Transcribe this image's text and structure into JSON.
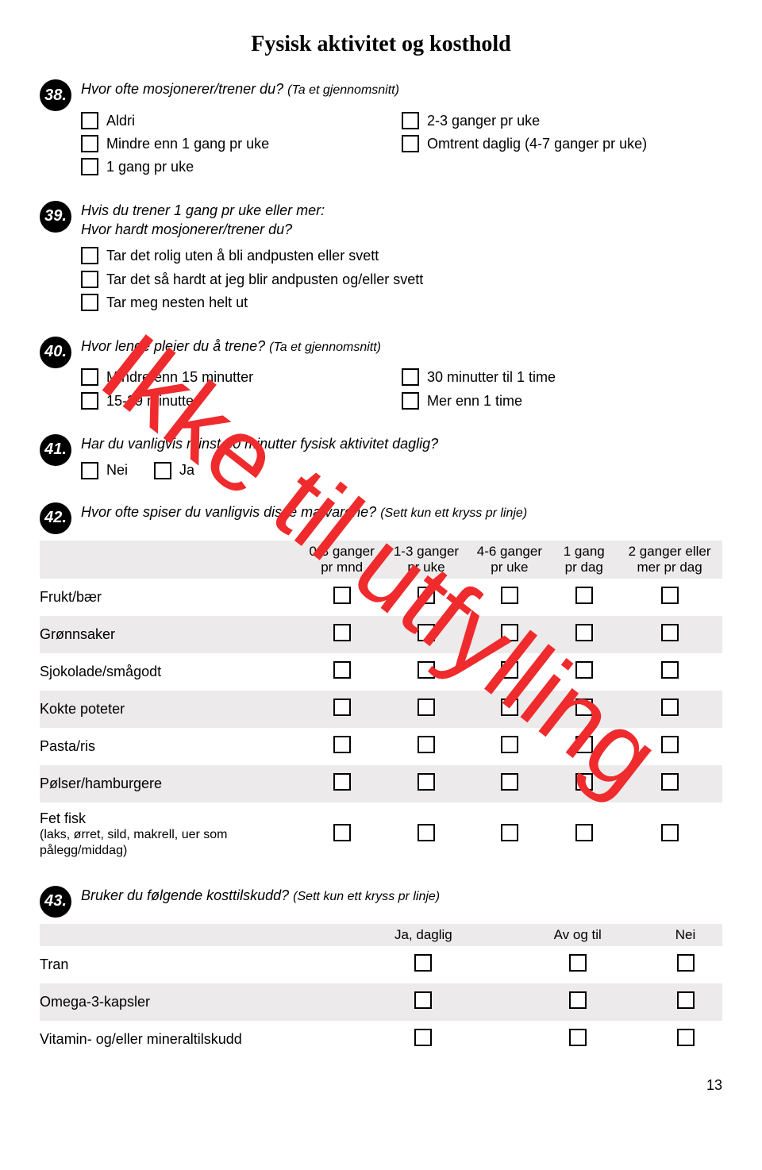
{
  "title": "Fysisk aktivitet og kosthold",
  "watermark": "Ikke til utfylling",
  "page_number": "13",
  "q38": {
    "num": "38.",
    "text": "Hvor ofte mosjonerer/trener du?",
    "hint": "(Ta et gjennomsnitt)",
    "col1": [
      "Aldri",
      "Mindre enn 1 gang pr uke",
      "1 gang pr uke"
    ],
    "col2": [
      "2-3 ganger pr uke",
      "Omtrent daglig (4-7 ganger pr uke)"
    ]
  },
  "q39": {
    "num": "39.",
    "line1": "Hvis du trener 1 gang pr uke eller mer:",
    "line2": "Hvor hardt mosjonerer/trener du?",
    "opts": [
      "Tar det rolig uten å bli andpusten eller svett",
      "Tar det så hardt at jeg blir andpusten og/eller svett",
      "Tar meg nesten helt ut"
    ]
  },
  "q40": {
    "num": "40.",
    "text": "Hvor lenge pleier du å trene?",
    "hint": "(Ta et gjennomsnitt)",
    "col1": [
      "Mindre enn 15 minutter",
      "15-29 minutter"
    ],
    "col2": [
      "30 minutter til 1 time",
      "Mer enn 1 time"
    ]
  },
  "q41": {
    "num": "41.",
    "text": "Har du vanligvis minst 30 minutter fysisk aktivitet daglig?",
    "opts": [
      "Nei",
      "Ja"
    ]
  },
  "q42": {
    "num": "42.",
    "text": "Hvor ofte spiser du vanligvis disse matvarene?",
    "hint": "(Sett kun ett kryss pr linje)",
    "cols": [
      "0-3 ganger pr mnd",
      "1-3 ganger pr uke",
      "4-6 ganger pr uke",
      "1 gang pr dag",
      "2 ganger eller mer pr dag"
    ],
    "rows": [
      {
        "label": "Frukt/bær",
        "sub": ""
      },
      {
        "label": "Grønnsaker",
        "sub": ""
      },
      {
        "label": "Sjokolade/smågodt",
        "sub": ""
      },
      {
        "label": "Kokte poteter",
        "sub": ""
      },
      {
        "label": "Pasta/ris",
        "sub": ""
      },
      {
        "label": "Pølser/hamburgere",
        "sub": ""
      },
      {
        "label": "Fet fisk",
        "sub": "(laks, ørret, sild, makrell, uer som pålegg/middag)"
      }
    ]
  },
  "q43": {
    "num": "43.",
    "text": "Bruker du følgende kosttilskudd?",
    "hint": "(Sett kun ett kryss pr linje)",
    "cols": [
      "Ja, daglig",
      "Av og til",
      "Nei"
    ],
    "rows": [
      "Tran",
      "Omega-3-kapsler",
      "Vitamin- og/eller mineraltilskudd"
    ]
  }
}
